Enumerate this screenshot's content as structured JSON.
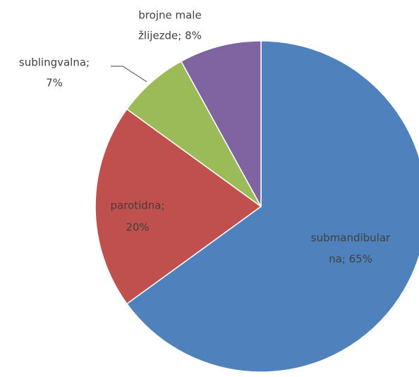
{
  "chart_data": {
    "type": "pie",
    "values": [
      65,
      20,
      7,
      8
    ],
    "value_labels": [
      [
        "submandibular",
        "na; 65%"
      ],
      [
        "parotidna;",
        "20%"
      ],
      [
        "sublingvalna;",
        "7%"
      ],
      [
        "brojne male",
        "žlijezde; 8%"
      ]
    ],
    "colors": [
      "#4f81bd",
      "#c0504d",
      "#9bbb59",
      "#8064a2"
    ]
  }
}
